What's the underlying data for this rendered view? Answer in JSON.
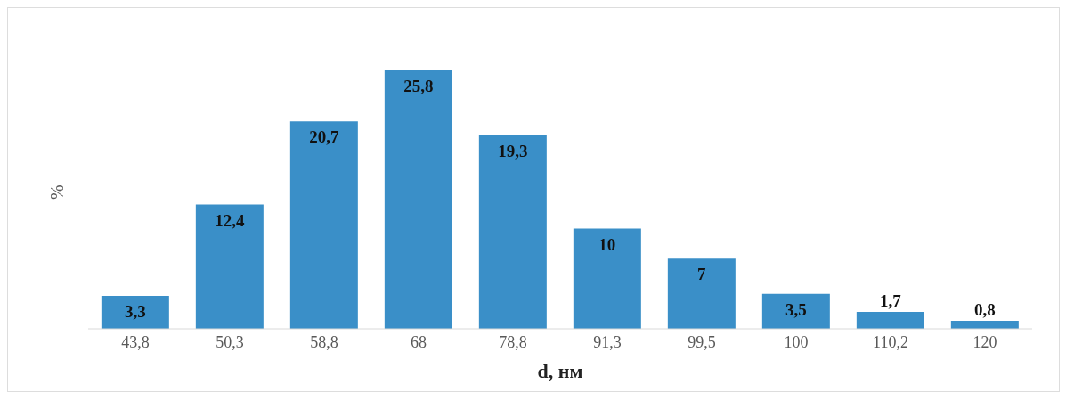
{
  "chart_data": {
    "type": "bar",
    "xlabel": "d, нм",
    "ylabel": "%",
    "categories": [
      "43,8",
      "50,3",
      "58,8",
      "68",
      "78,8",
      "91,3",
      "99,5",
      "100",
      "110,2",
      "120"
    ],
    "values": [
      3.3,
      12.4,
      20.7,
      25.8,
      19.3,
      10,
      7,
      3.5,
      1.7,
      0.8
    ],
    "value_labels": [
      "3,3",
      "12,4",
      "20,7",
      "25,8",
      "19,3",
      "10",
      "7",
      "3,5",
      "1,7",
      "0,8"
    ],
    "color": "#3a8fc8",
    "grid": false,
    "legend": false
  }
}
